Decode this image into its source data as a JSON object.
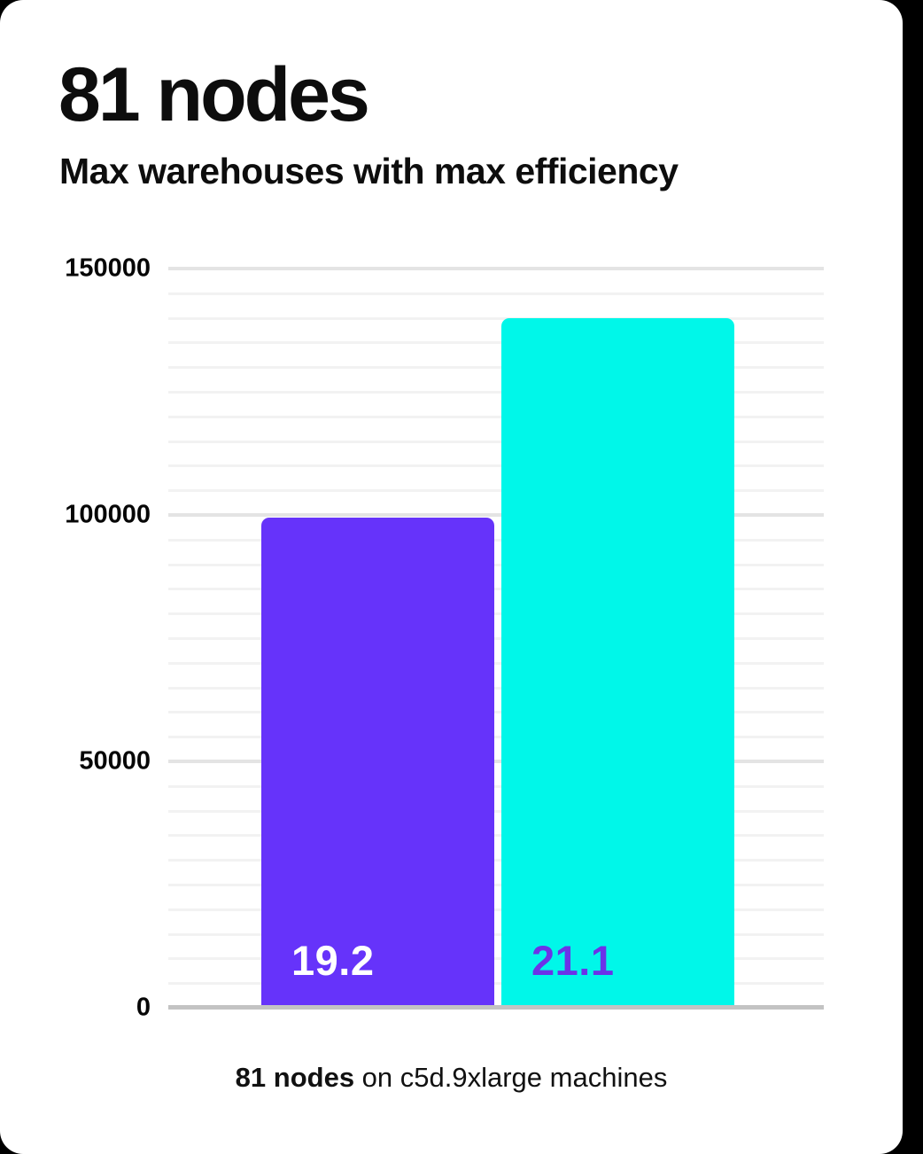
{
  "page": {
    "background_color": "#000000",
    "card_color": "#ffffff"
  },
  "header": {
    "title": "81 nodes",
    "subtitle": "Max warehouses with max efficiency"
  },
  "chart_data": {
    "type": "bar",
    "title": "81 nodes",
    "subtitle": "Max warehouses with max efficiency",
    "categories": [
      "19.2",
      "21.1"
    ],
    "values": [
      99500,
      140000
    ],
    "bar_labels": [
      "19.2",
      "21.1"
    ],
    "bar_colors": [
      "#6633FA",
      "#00F7E9"
    ],
    "bar_label_colors": [
      "#FFFFFF",
      "#6B33E8"
    ],
    "ylim": [
      0,
      150000
    ],
    "yticks": [
      0,
      50000,
      100000,
      150000
    ],
    "ytick_labels": [
      "0",
      "50000",
      "100000",
      "150000"
    ],
    "minor_grid_step": 5000,
    "grid": true,
    "legend_position": "none",
    "xlabel": "",
    "ylabel": "",
    "caption": "81 nodes on c5d.9xlarge machines"
  },
  "caption": {
    "bold_text": "81 nodes",
    "regular_text": " on c5d.9xlarge machines"
  }
}
